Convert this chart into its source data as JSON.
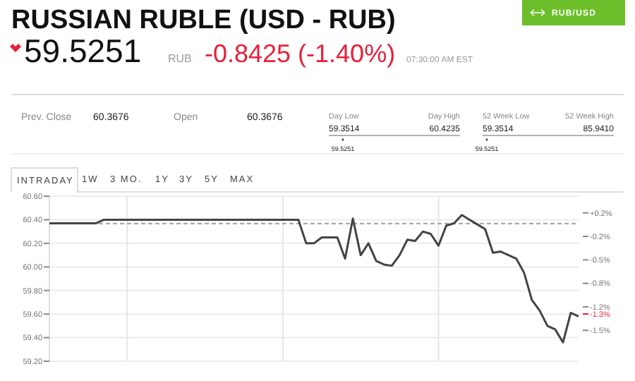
{
  "chart_data": {
    "type": "line",
    "title": "RUSSIAN RUBLE (USD - RUB)",
    "categories": [
      null,
      null,
      null,
      null,
      null,
      null,
      null,
      null,
      null,
      null,
      null,
      null,
      null,
      null,
      null,
      null,
      null,
      null,
      null,
      null,
      null,
      null,
      null,
      null,
      null,
      null,
      null,
      null,
      null,
      null,
      null,
      null,
      null,
      null,
      null,
      null,
      null,
      null,
      null,
      null,
      null,
      null,
      null,
      null,
      null,
      null,
      null,
      null,
      null,
      null,
      null,
      null,
      null,
      null,
      null,
      null,
      null,
      null,
      null,
      null,
      null,
      null,
      null,
      null,
      null,
      null,
      null,
      null,
      null
    ],
    "series": [
      {
        "color": "#444444",
        "values": [
          60.37,
          60.37,
          60.37,
          60.37,
          60.37,
          60.37,
          60.37,
          60.4,
          60.4,
          60.4,
          60.4,
          60.4,
          60.4,
          60.4,
          60.4,
          60.4,
          60.4,
          60.4,
          60.4,
          60.4,
          60.4,
          60.4,
          60.4,
          60.4,
          60.4,
          60.4,
          60.4,
          60.4,
          60.4,
          60.4,
          60.4,
          60.4,
          60.4,
          60.2,
          60.2,
          60.25,
          60.25,
          60.25,
          60.07,
          60.41,
          60.1,
          60.2,
          60.05,
          60.02,
          60.01,
          60.1,
          60.23,
          60.22,
          60.3,
          60.28,
          60.18,
          60.35,
          60.37,
          60.44,
          60.4,
          60.36,
          60.32,
          60.12,
          60.13,
          60.1,
          60.07,
          59.95,
          59.72,
          59.63,
          59.5,
          59.47,
          59.36,
          59.61,
          59.58
        ]
      }
    ],
    "ylim": [
      59.2,
      60.6
    ],
    "yticks": [
      {
        "value": 59.2,
        "label": "59.20"
      },
      {
        "value": 59.4,
        "label": "59.40"
      },
      {
        "value": 59.6,
        "label": "59.60"
      },
      {
        "value": 59.8,
        "label": "59.80"
      },
      {
        "value": 60.0,
        "label": "60.00"
      },
      {
        "value": 60.2,
        "label": "60.20"
      },
      {
        "value": 60.4,
        "label": "60.40"
      },
      {
        "value": 60.6,
        "label": "60.60"
      }
    ],
    "y2lim": [
      -1.934,
      0.385
    ],
    "y2ticks": [
      {
        "value": 0.15,
        "label": "+0.2%"
      },
      {
        "value": -0.18,
        "label": "-0.2%"
      },
      {
        "value": -0.51,
        "label": "-0.5%"
      },
      {
        "value": -0.84,
        "label": "-0.8%"
      },
      {
        "value": -1.17,
        "label": "-1.2%"
      },
      {
        "value": -1.5,
        "label": "-1.5%"
      }
    ],
    "ref_lines": [
      {
        "axis": "y",
        "value": 60.3676,
        "color": "#aaaaaa",
        "line_style": "dashed"
      },
      {
        "axis": "y2",
        "value": -1.27,
        "label": "-1.3%",
        "color": "#e8203a"
      }
    ],
    "grid": true,
    "marker": "none",
    "line_style": "solid",
    "annotations": [
      "59.5251",
      "RUB",
      "-0.8425 (-1.40%)",
      "07:30:00 AM EST",
      "Prev. Close",
      "60.3676",
      "Open",
      "60.3676",
      "Day Low",
      "Day High",
      "59.3514",
      "60.4235",
      "59.5251",
      "52 Week Low",
      "52 Week High",
      "59.3514",
      "85.9410",
      "59.5251",
      "RUB/USD",
      "INTRADAY",
      "1W",
      "3 MO.",
      "1Y",
      "3Y",
      "5Y",
      "MAX"
    ]
  }
}
